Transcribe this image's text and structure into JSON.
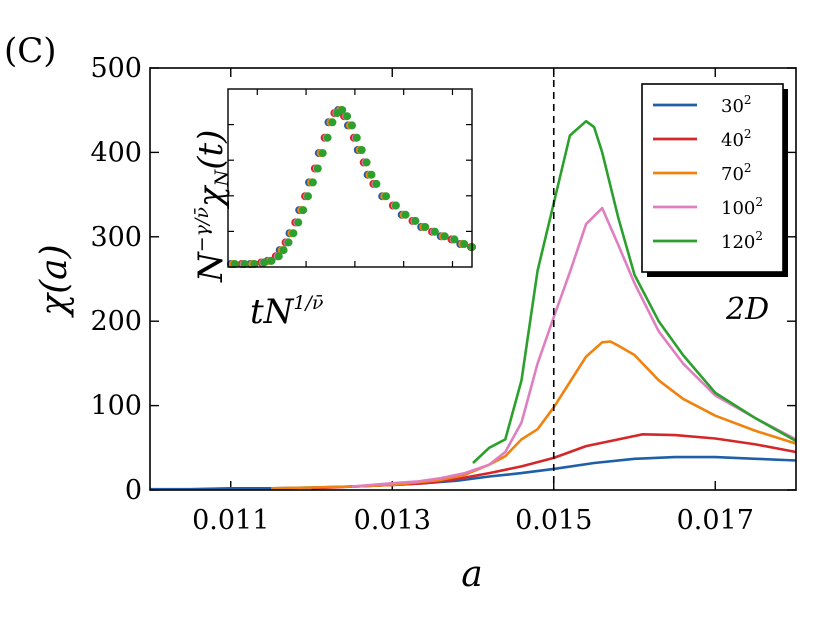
{
  "panel_label": "(C)",
  "dimension_label": "2D",
  "chart_data": {
    "type": "line",
    "title": "",
    "xlabel": "a",
    "ylabel": "χ(a)",
    "xlim": [
      0.01,
      0.018
    ],
    "ylim": [
      0,
      500
    ],
    "x_ticks": [
      0.011,
      0.013,
      0.015,
      0.017
    ],
    "x_tick_labels": [
      "0.011",
      "0.013",
      "0.015",
      "0.017"
    ],
    "y_ticks": [
      0,
      100,
      200,
      300,
      400,
      500
    ],
    "y_tick_labels": [
      "0",
      "100",
      "200",
      "300",
      "400",
      "500"
    ],
    "grid": false,
    "reference_line": {
      "x": 0.015,
      "style": "dashed"
    },
    "legend_position": "top-right",
    "series": [
      {
        "name": "30²",
        "base": "30",
        "exp": "2",
        "color": "#1f5fa8",
        "x": [
          0.01,
          0.0105,
          0.011,
          0.0115,
          0.012,
          0.0125,
          0.013,
          0.0134,
          0.0138,
          0.0142,
          0.0146,
          0.015,
          0.0155,
          0.016,
          0.0165,
          0.017,
          0.0175,
          0.018
        ],
        "y": [
          1,
          1,
          2,
          2,
          3,
          4,
          6,
          8,
          11,
          16,
          20,
          25,
          32,
          37,
          39,
          39,
          37,
          35
        ]
      },
      {
        "name": "40²",
        "base": "40",
        "exp": "2",
        "color": "#d62728",
        "x": [
          0.012,
          0.0125,
          0.013,
          0.0134,
          0.0138,
          0.0142,
          0.0146,
          0.015,
          0.0154,
          0.0158,
          0.0161,
          0.0165,
          0.017,
          0.0175,
          0.018
        ],
        "y": [
          2,
          4,
          6,
          8,
          13,
          20,
          28,
          38,
          52,
          60,
          66,
          65,
          61,
          54,
          45
        ]
      },
      {
        "name": "70²",
        "base": "70",
        "exp": "2",
        "color": "#f0820f",
        "x": [
          0.0115,
          0.012,
          0.0125,
          0.013,
          0.0133,
          0.0136,
          0.0139,
          0.0142,
          0.0144,
          0.0146,
          0.0148,
          0.015,
          0.0152,
          0.0154,
          0.0156,
          0.0157,
          0.0158,
          0.016,
          0.0163,
          0.0166,
          0.017,
          0.0175,
          0.018
        ],
        "y": [
          2,
          3,
          4,
          6,
          9,
          12,
          18,
          30,
          40,
          60,
          72,
          98,
          128,
          158,
          175,
          176,
          171,
          160,
          130,
          108,
          88,
          70,
          55
        ]
      },
      {
        "name": "100²",
        "base": "100",
        "exp": "2",
        "color": "#e07fbf",
        "x": [
          0.0125,
          0.013,
          0.0133,
          0.0136,
          0.0139,
          0.0142,
          0.0144,
          0.0146,
          0.0148,
          0.015,
          0.0152,
          0.0154,
          0.0156,
          0.0158,
          0.016,
          0.0163,
          0.0166,
          0.017,
          0.0175,
          0.018
        ],
        "y": [
          4,
          8,
          10,
          14,
          20,
          30,
          45,
          80,
          150,
          205,
          258,
          315,
          334,
          290,
          245,
          188,
          150,
          112,
          85,
          60
        ]
      },
      {
        "name": "120²",
        "base": "120",
        "exp": "2",
        "color": "#2ca02c",
        "x": [
          0.014,
          0.0142,
          0.0144,
          0.0146,
          0.0148,
          0.015,
          0.0152,
          0.0154,
          0.0155,
          0.0156,
          0.0158,
          0.016,
          0.0163,
          0.0166,
          0.017,
          0.0175,
          0.018
        ],
        "y": [
          32,
          50,
          60,
          130,
          260,
          340,
          420,
          437,
          430,
          400,
          322,
          255,
          200,
          160,
          115,
          85,
          58
        ]
      }
    ]
  },
  "inset": {
    "xlabel": "tN",
    "xlabel_exp": "1/ν̄",
    "ylabel_base": "N",
    "ylabel_exp": "−γ/ν̄",
    "ylabel_mid": "χ",
    "ylabel_sub": "N",
    "ylabel_tail": "(t)",
    "xlim": [
      0,
      1
    ],
    "ylim": [
      0,
      1
    ],
    "x_ticks": [
      0.12,
      0.32,
      0.52,
      0.72,
      0.92
    ],
    "y_ticks": [
      0.2,
      0.4,
      0.6,
      0.8
    ],
    "points_x": [
      0.02,
      0.06,
      0.1,
      0.14,
      0.17,
      0.2,
      0.22,
      0.24,
      0.26,
      0.28,
      0.3,
      0.32,
      0.34,
      0.36,
      0.38,
      0.4,
      0.42,
      0.44,
      0.46,
      0.48,
      0.5,
      0.52,
      0.54,
      0.56,
      0.58,
      0.6,
      0.64,
      0.68,
      0.72,
      0.76,
      0.8,
      0.84,
      0.88,
      0.92,
      0.96,
      1.0
    ],
    "points_y": [
      0.0,
      0.0,
      0.0,
      0.01,
      0.02,
      0.05,
      0.09,
      0.14,
      0.2,
      0.27,
      0.35,
      0.44,
      0.53,
      0.62,
      0.72,
      0.82,
      0.92,
      0.98,
      1.0,
      0.96,
      0.9,
      0.82,
      0.74,
      0.66,
      0.58,
      0.52,
      0.44,
      0.38,
      0.32,
      0.28,
      0.24,
      0.21,
      0.18,
      0.16,
      0.13,
      0.11
    ]
  }
}
